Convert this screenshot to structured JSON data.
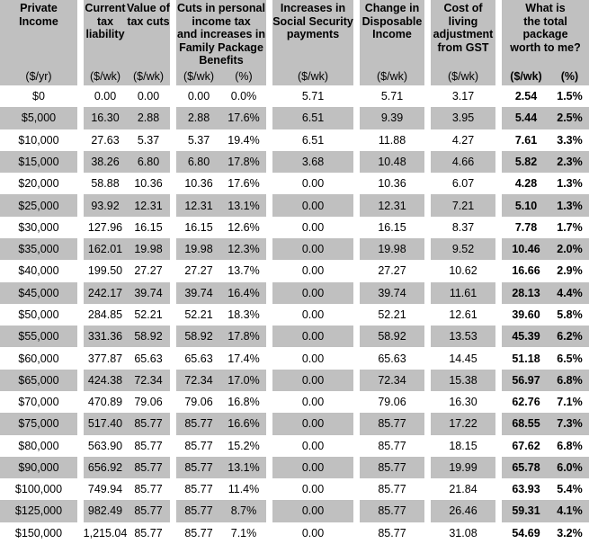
{
  "colors": {
    "row_shade": "#c0c0c0",
    "background": "#ffffff",
    "text": "#000000"
  },
  "header_groups": [
    {
      "header": "Private\nIncome",
      "units": [
        "($/yr)"
      ]
    },
    {
      "sub": [
        {
          "header": "Current\ntax\nliability",
          "unit": "($/wk)"
        },
        {
          "header": "Value of\ntax cuts",
          "unit": "($/wk)"
        }
      ]
    },
    {
      "header": "Cuts in personal\nincome tax\nand increases in\nFamily Package\nBenefits",
      "units": [
        "($/wk)",
        "(%)"
      ]
    },
    {
      "header": "Increases in\nSocial Security\npayments",
      "units": [
        "($/wk)"
      ]
    },
    {
      "header": "Change in\nDisposable\nIncome",
      "units": [
        "($/wk)"
      ]
    },
    {
      "header": "Cost of\nliving\nadjustment\nfrom GST",
      "units": [
        "($/wk)"
      ]
    },
    {
      "header": "What is\nthe total\npackage\nworth to me?",
      "units": [
        "($/wk)",
        "(%)"
      ]
    }
  ],
  "chart_data": {
    "type": "table",
    "columns": [
      "Private Income ($/yr)",
      "Current tax liability ($/wk)",
      "Value of tax cuts ($/wk)",
      "Cuts in personal income tax and increases in Family Package Benefits ($/wk)",
      "Cuts in personal income tax and increases in Family Package Benefits (%)",
      "Increases in Social Security payments ($/wk)",
      "Change in Disposable Income ($/wk)",
      "Cost of living adjustment from GST ($/wk)",
      "What is the total package worth to me? ($/wk)",
      "What is the total package worth to me? (%)"
    ],
    "rows": [
      [
        "$0",
        "0.00",
        "0.00",
        "0.00",
        "0.0%",
        "5.71",
        "5.71",
        "3.17",
        "2.54",
        "1.5%"
      ],
      [
        "$5,000",
        "16.30",
        "2.88",
        "2.88",
        "17.6%",
        "6.51",
        "9.39",
        "3.95",
        "5.44",
        "2.5%"
      ],
      [
        "$10,000",
        "27.63",
        "5.37",
        "5.37",
        "19.4%",
        "6.51",
        "11.88",
        "4.27",
        "7.61",
        "3.3%"
      ],
      [
        "$15,000",
        "38.26",
        "6.80",
        "6.80",
        "17.8%",
        "3.68",
        "10.48",
        "4.66",
        "5.82",
        "2.3%"
      ],
      [
        "$20,000",
        "58.88",
        "10.36",
        "10.36",
        "17.6%",
        "0.00",
        "10.36",
        "6.07",
        "4.28",
        "1.3%"
      ],
      [
        "$25,000",
        "93.92",
        "12.31",
        "12.31",
        "13.1%",
        "0.00",
        "12.31",
        "7.21",
        "5.10",
        "1.3%"
      ],
      [
        "$30,000",
        "127.96",
        "16.15",
        "16.15",
        "12.6%",
        "0.00",
        "16.15",
        "8.37",
        "7.78",
        "1.7%"
      ],
      [
        "$35,000",
        "162.01",
        "19.98",
        "19.98",
        "12.3%",
        "0.00",
        "19.98",
        "9.52",
        "10.46",
        "2.0%"
      ],
      [
        "$40,000",
        "199.50",
        "27.27",
        "27.27",
        "13.7%",
        "0.00",
        "27.27",
        "10.62",
        "16.66",
        "2.9%"
      ],
      [
        "$45,000",
        "242.17",
        "39.74",
        "39.74",
        "16.4%",
        "0.00",
        "39.74",
        "11.61",
        "28.13",
        "4.4%"
      ],
      [
        "$50,000",
        "284.85",
        "52.21",
        "52.21",
        "18.3%",
        "0.00",
        "52.21",
        "12.61",
        "39.60",
        "5.8%"
      ],
      [
        "$55,000",
        "331.36",
        "58.92",
        "58.92",
        "17.8%",
        "0.00",
        "58.92",
        "13.53",
        "45.39",
        "6.2%"
      ],
      [
        "$60,000",
        "377.87",
        "65.63",
        "65.63",
        "17.4%",
        "0.00",
        "65.63",
        "14.45",
        "51.18",
        "6.5%"
      ],
      [
        "$65,000",
        "424.38",
        "72.34",
        "72.34",
        "17.0%",
        "0.00",
        "72.34",
        "15.38",
        "56.97",
        "6.8%"
      ],
      [
        "$70,000",
        "470.89",
        "79.06",
        "79.06",
        "16.8%",
        "0.00",
        "79.06",
        "16.30",
        "62.76",
        "7.1%"
      ],
      [
        "$75,000",
        "517.40",
        "85.77",
        "85.77",
        "16.6%",
        "0.00",
        "85.77",
        "17.22",
        "68.55",
        "7.3%"
      ],
      [
        "$80,000",
        "563.90",
        "85.77",
        "85.77",
        "15.2%",
        "0.00",
        "85.77",
        "18.15",
        "67.62",
        "6.8%"
      ],
      [
        "$90,000",
        "656.92",
        "85.77",
        "85.77",
        "13.1%",
        "0.00",
        "85.77",
        "19.99",
        "65.78",
        "6.0%"
      ],
      [
        "$100,000",
        "749.94",
        "85.77",
        "85.77",
        "11.4%",
        "0.00",
        "85.77",
        "21.84",
        "63.93",
        "5.4%"
      ],
      [
        "$125,000",
        "982.49",
        "85.77",
        "85.77",
        "8.7%",
        "0.00",
        "85.77",
        "26.46",
        "59.31",
        "4.1%"
      ],
      [
        "$150,000",
        "1,215.04",
        "85.77",
        "85.77",
        "7.1%",
        "0.00",
        "85.77",
        "31.08",
        "54.69",
        "3.2%"
      ]
    ]
  }
}
